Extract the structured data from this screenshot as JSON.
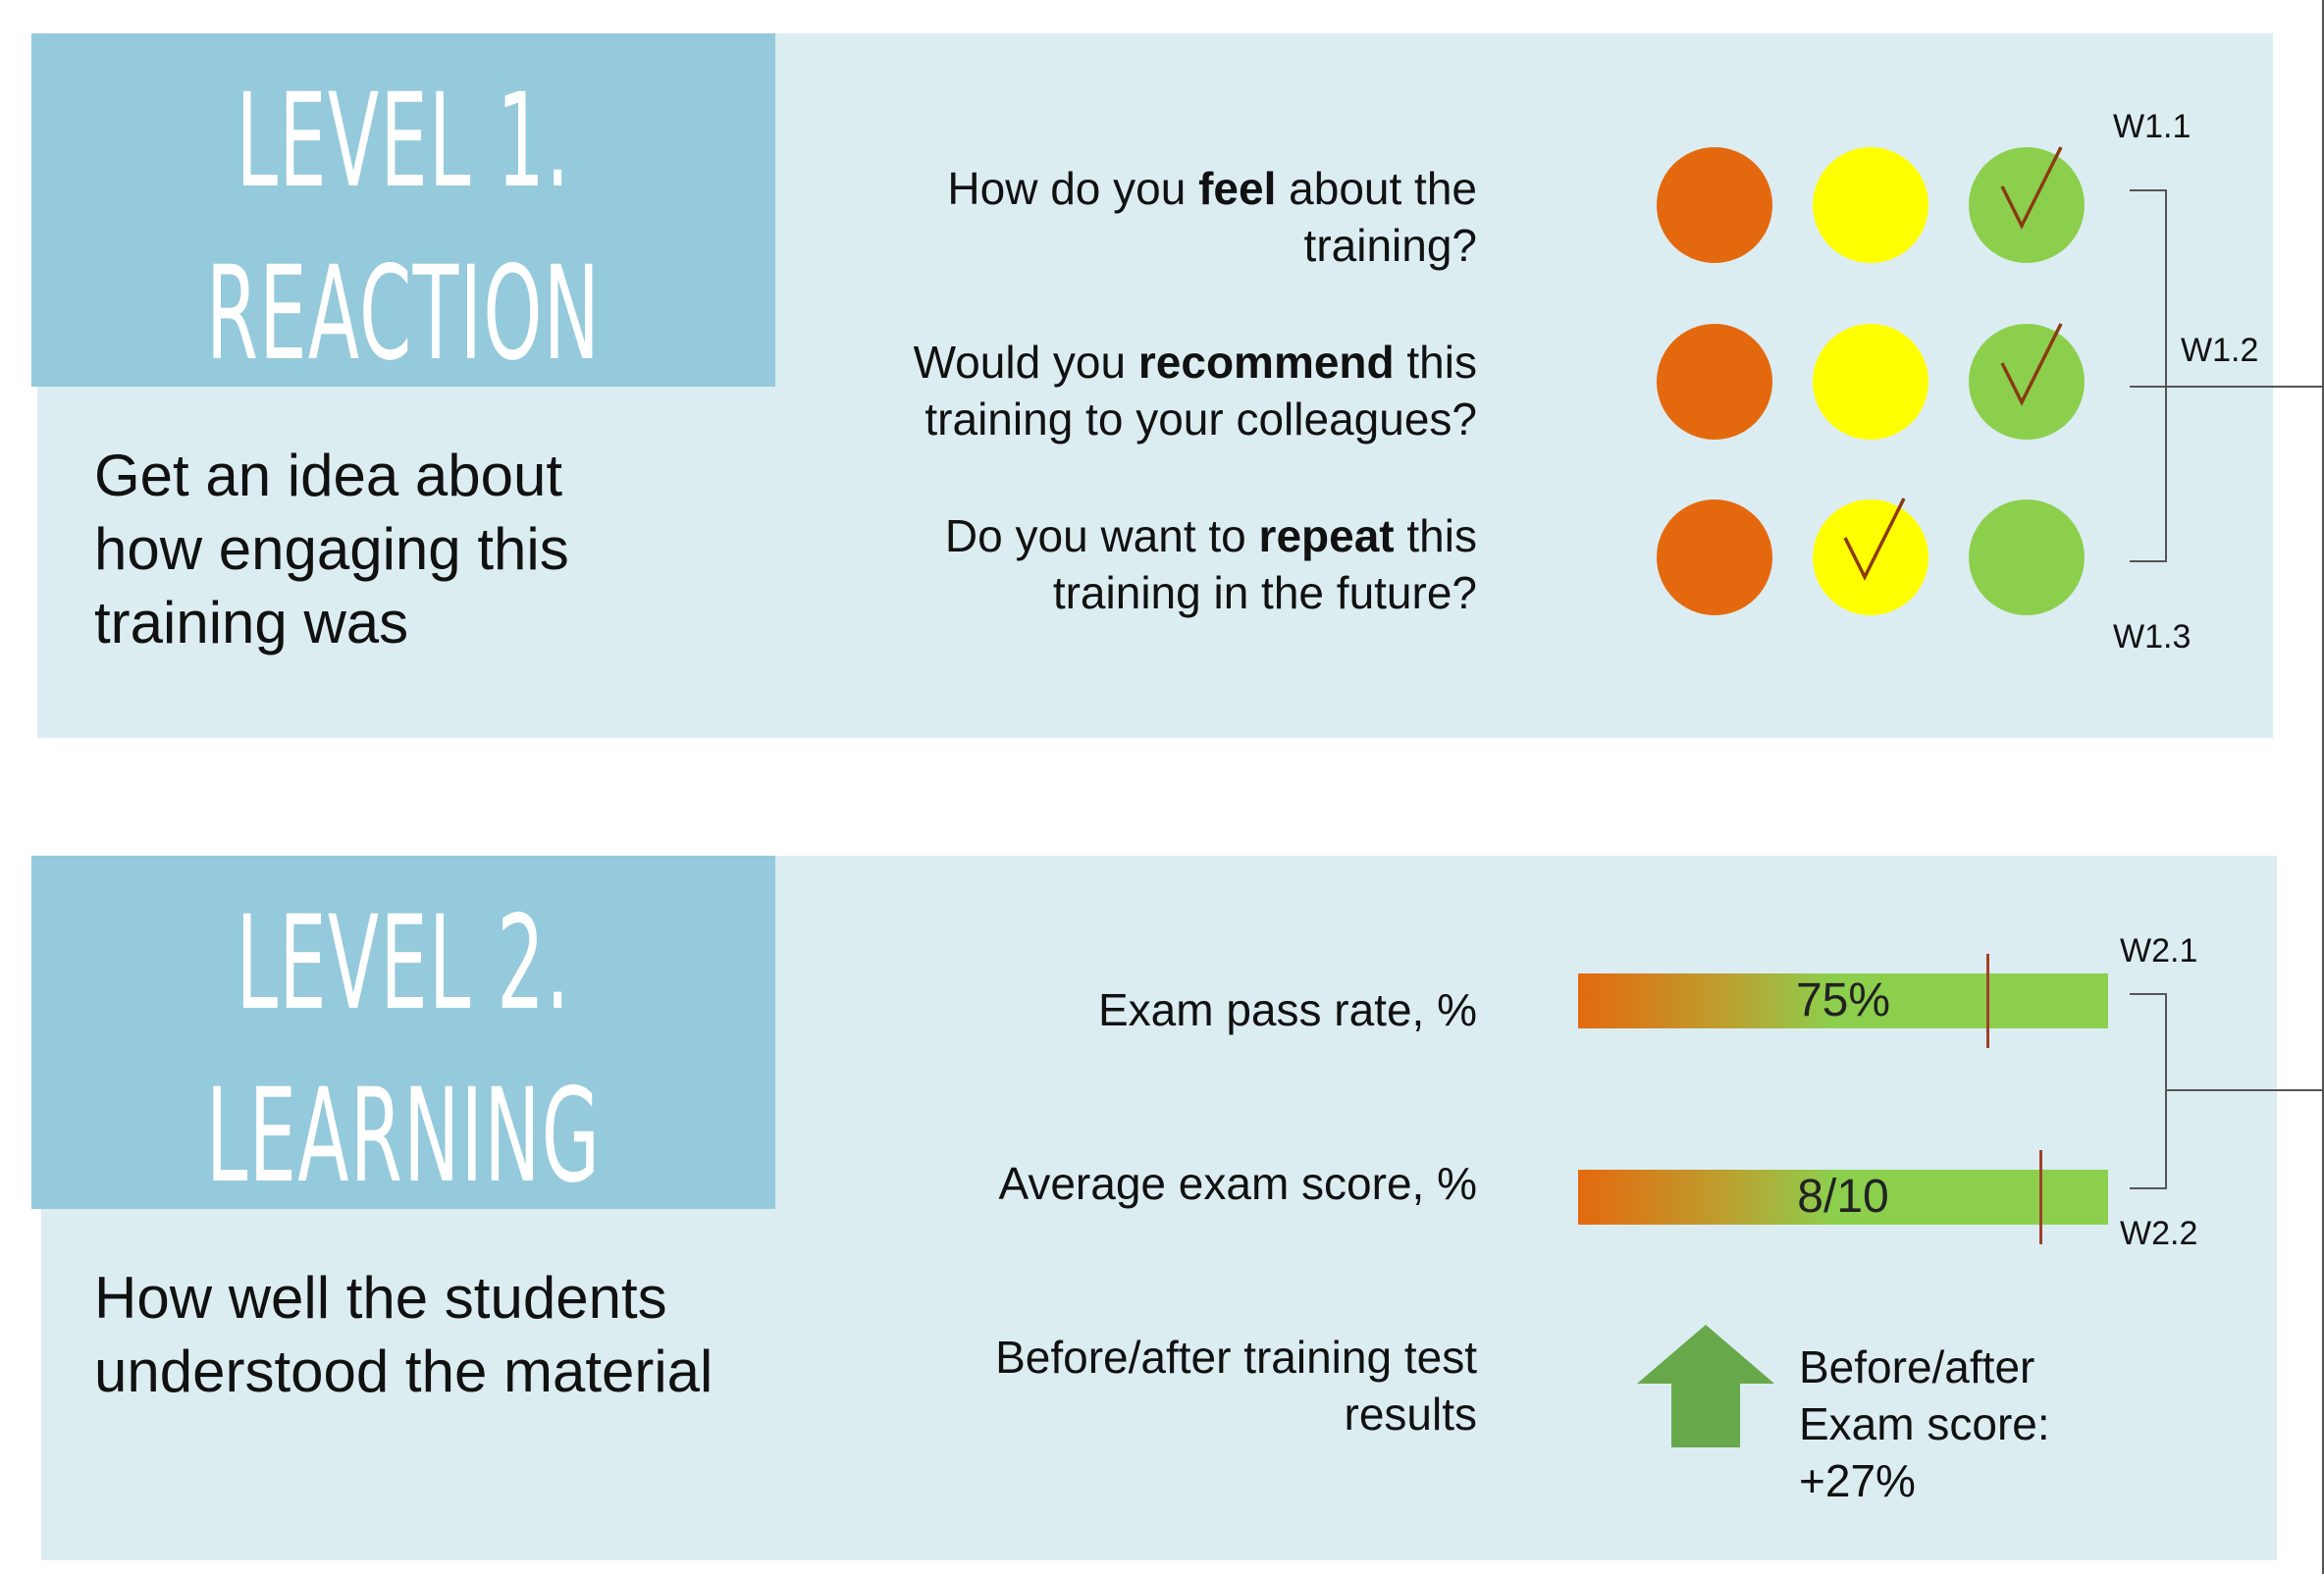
{
  "level1": {
    "title_line1": "LEVEL 1.",
    "title_line2": "REACTION",
    "description": "Get an idea about how engaging this training was",
    "questions": [
      {
        "pre": "How do you ",
        "bold": "feel",
        "post": " about the training?",
        "selected": "green"
      },
      {
        "pre": "Would you ",
        "bold": "recommend",
        "post": " this training to your colleagues?",
        "selected": "green"
      },
      {
        "pre": "Do you want to ",
        "bold": "repeat",
        "post": " this training in the future?",
        "selected": "yellow"
      }
    ],
    "weight_labels": {
      "w1": "W1.1",
      "w2": "W1.2",
      "w3": "W1.3"
    }
  },
  "level2": {
    "title_line1": "LEVEL 2.",
    "title_line2": "LEARNING",
    "description": "How well the students understood the material",
    "metrics": [
      {
        "label": "Exam pass rate, %",
        "value_text": "75%",
        "marker_fraction": 0.77
      },
      {
        "label": "Average exam score, %",
        "value_text": "8/10",
        "marker_fraction": 0.87
      }
    ],
    "before_after_label": "Before/after training test results",
    "before_after_result": "Before/after Exam score: +27%",
    "weight_labels": {
      "w1": "W2.1",
      "w2": "W2.2"
    }
  },
  "colors": {
    "panel_bg": "#dcedf2",
    "title_bg": "#94cadb",
    "orange": "#e4690e",
    "yellow": "#ffff00",
    "green": "#8ccf4d",
    "arrow_green": "#67a84a",
    "check": "#8a3a12"
  },
  "icons": {
    "check": "check-icon",
    "arrow": "up-arrow-icon"
  }
}
